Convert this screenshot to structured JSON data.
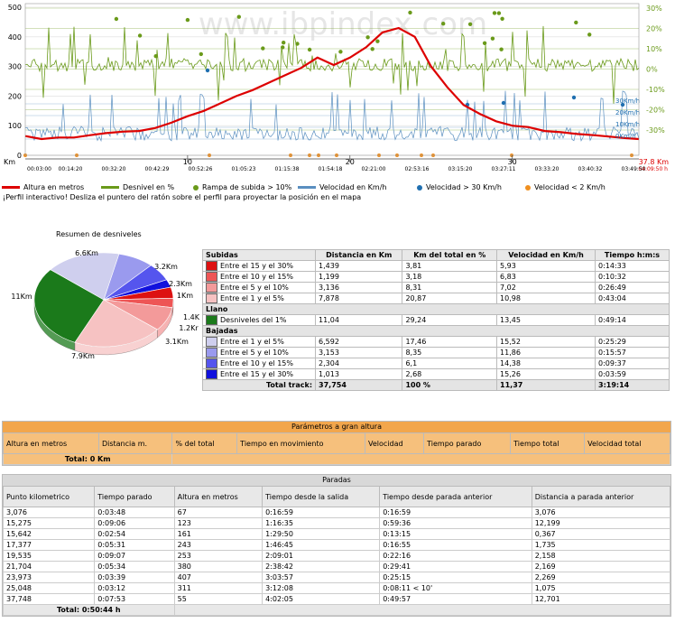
{
  "profile": {
    "watermark": "www.ibpindex.com",
    "y_left_ticks": [
      "500",
      "400",
      "300",
      "200",
      "100",
      "0"
    ],
    "y_right_ticks": [
      "30%",
      "20%",
      "10%",
      "0%",
      "-10%",
      "-20%",
      "-30%"
    ],
    "speed_ticks": [
      "30Km/h",
      "20Km/h",
      "10Km/h",
      "0Km/h"
    ],
    "km_label": "Km",
    "km_ticks": [
      "10",
      "20",
      "30"
    ],
    "km_end": "37.8 Km",
    "time_end": "04:09:50 h",
    "time_ticks": [
      "00:03:00",
      "00:14:20",
      "00:32:20",
      "00:42:29",
      "00:52:26",
      "01:05:23",
      "01:15:38",
      "01:54:18",
      "02:21:00",
      "02:53:16",
      "03:15:20",
      "03:27:11",
      "03:33:20",
      "03:40:32",
      "03:49:50"
    ],
    "colors": {
      "altitude": "#dd0000",
      "slope": "#6a9a1a",
      "speed": "#5a8fc0",
      "fast": "#1f6fb0",
      "slow": "#f09020"
    }
  },
  "chart_data": {
    "type": "line",
    "xlabel": "Km",
    "ylabel": "",
    "xlim": [
      0,
      37.8
    ],
    "ylim": [
      0,
      500
    ],
    "series": [
      {
        "name": "Altura en metros",
        "x": [
          0,
          1,
          2,
          3,
          4,
          5,
          6,
          7,
          8,
          9,
          10,
          11,
          12,
          13,
          14,
          15,
          16,
          17,
          18,
          19,
          20,
          21,
          22,
          23,
          24,
          25,
          26,
          27,
          28,
          29,
          30,
          31,
          32,
          33,
          34,
          35,
          36,
          37,
          37.8
        ],
        "y": [
          65,
          55,
          60,
          60,
          68,
          75,
          80,
          82,
          92,
          110,
          132,
          150,
          175,
          200,
          220,
          245,
          270,
          295,
          330,
          305,
          330,
          365,
          415,
          430,
          400,
          300,
          230,
          170,
          140,
          115,
          100,
          95,
          82,
          78,
          72,
          68,
          63,
          58,
          55
        ]
      }
    ]
  },
  "legend": [
    {
      "label": "Altura en metros",
      "kind": "line",
      "color": "#dd0000"
    },
    {
      "label": "Desnivel en %",
      "kind": "line",
      "color": "#6a9a1a"
    },
    {
      "label": "Rampa de subida > 10%",
      "kind": "dot",
      "color": "#6a9a1a"
    },
    {
      "label": "Velocidad en Km/h",
      "kind": "line",
      "color": "#5a8fc0"
    },
    {
      "label": "Velocidad > 30 Km/h",
      "kind": "dot",
      "color": "#1f6fb0"
    },
    {
      "label": "Velocidad < 2 Km/h",
      "kind": "dot",
      "color": "#f09020"
    }
  ],
  "interactive_note": "¡Perfil interactivo! Desliza el puntero del ratón sobre el perfil para proyectar la posición en el mapa",
  "pie": {
    "title": "Resumen de desniveles",
    "slices": [
      {
        "label": "11Km",
        "value": 11.04,
        "color": "#1b7a1b"
      },
      {
        "label": "6.6Km",
        "value": 6.592,
        "color": "#cfcfee"
      },
      {
        "label": "3.2Km",
        "value": 3.153,
        "color": "#9a9aee"
      },
      {
        "label": "2.3Km",
        "value": 2.304,
        "color": "#5555ee"
      },
      {
        "label": "1Km",
        "value": 1.013,
        "color": "#1111dd"
      },
      {
        "label": "1.4K",
        "value": 1.439,
        "color": "#dd1111"
      },
      {
        "label": "1.2Kr",
        "value": 1.199,
        "color": "#ee5555"
      },
      {
        "label": "3.1Km",
        "value": 3.136,
        "color": "#f39a9a"
      },
      {
        "label": "7.9Km",
        "value": 7.878,
        "color": "#f6c2c2"
      }
    ]
  },
  "desnivel_table": {
    "headers": [
      "Subidas",
      "Distancia en Km",
      "Km del total en %",
      "Velocidad en Km/h",
      "Tiempo h:m:s"
    ],
    "subidas": [
      {
        "label": "Entre el 15 y el 30%",
        "color": "#dd1111",
        "dist": "1,439",
        "pct": "3,81",
        "vel": "5,93",
        "time": "0:14:33"
      },
      {
        "label": "Entre el 10 y el 15%",
        "color": "#ee5555",
        "dist": "1,199",
        "pct": "3,18",
        "vel": "6,83",
        "time": "0:10:32"
      },
      {
        "label": "Entre el 5 y el 10%",
        "color": "#f39a9a",
        "dist": "3,136",
        "pct": "8,31",
        "vel": "7,02",
        "time": "0:26:49"
      },
      {
        "label": "Entre el 1 y el 5%",
        "color": "#f6c2c2",
        "dist": "7,878",
        "pct": "20,87",
        "vel": "10,98",
        "time": "0:43:04"
      }
    ],
    "llano_title": "Llano",
    "llano": [
      {
        "label": "Desniveles del 1%",
        "color": "#1b7a1b",
        "dist": "11,04",
        "pct": "29,24",
        "vel": "13,45",
        "time": "0:49:14"
      }
    ],
    "bajadas_title": "Bajadas",
    "bajadas": [
      {
        "label": "Entre el 1 y el 5%",
        "color": "#cfcfee",
        "dist": "6,592",
        "pct": "17,46",
        "vel": "15,52",
        "time": "0:25:29"
      },
      {
        "label": "Entre el 5 y el 10%",
        "color": "#9a9aee",
        "dist": "3,153",
        "pct": "8,35",
        "vel": "11,86",
        "time": "0:15:57"
      },
      {
        "label": "Entre el 10 y el 15%",
        "color": "#5555ee",
        "dist": "2,304",
        "pct": "6,1",
        "vel": "14,38",
        "time": "0:09:37"
      },
      {
        "label": "Entre el 15 y el 30%",
        "color": "#1111dd",
        "dist": "1,013",
        "pct": "2,68",
        "vel": "15,26",
        "time": "0:03:59"
      }
    ],
    "total": {
      "label": "Total track:",
      "dist": "37,754",
      "pct": "100 %",
      "vel": "11,37",
      "time": "3:19:14"
    }
  },
  "altura": {
    "title": "Parámetros a gran altura",
    "headers": [
      "Altura en metros",
      "Distancia m.",
      "% del total",
      "Tiempo en movimiento",
      "Velocidad",
      "Tiempo parado",
      "Tiempo total",
      "Velocidad total"
    ],
    "total": "Total: 0 Km"
  },
  "paradas": {
    "title": "Paradas",
    "headers": [
      "Punto kilometrico",
      "Tiempo parado",
      "Altura en metros",
      "Tiempo desde la salida",
      "Tiempo desde parada anterior",
      "Distancia a parada anterior"
    ],
    "rows": [
      [
        "3,076",
        "0:03:48",
        "67",
        "0:16:59",
        "0:16:59",
        "3,076"
      ],
      [
        "15,275",
        "0:09:06",
        "123",
        "1:16:35",
        "0:59:36",
        "12,199"
      ],
      [
        "15,642",
        "0:02:54",
        "161",
        "1:29:50",
        "0:13:15",
        "0,367"
      ],
      [
        "17,377",
        "0:05:31",
        "243",
        "1:46:45",
        "0:16:55",
        "1,735"
      ],
      [
        "19,535",
        "0:09:07",
        "253",
        "2:09:01",
        "0:22:16",
        "2,158"
      ],
      [
        "21,704",
        "0:05:34",
        "380",
        "2:38:42",
        "0:29:41",
        "2,169"
      ],
      [
        "23,973",
        "0:03:39",
        "407",
        "3:03:57",
        "0:25:15",
        "2,269"
      ],
      [
        "25,048",
        "0:03:12",
        "311",
        "3:12:08",
        "0:08:11  < 10'",
        "1,075"
      ],
      [
        "37,748",
        "0:07:53",
        "55",
        "4:02:05",
        "0:49:57",
        "12,701"
      ]
    ],
    "total": "Total: 0:50:44 h"
  }
}
